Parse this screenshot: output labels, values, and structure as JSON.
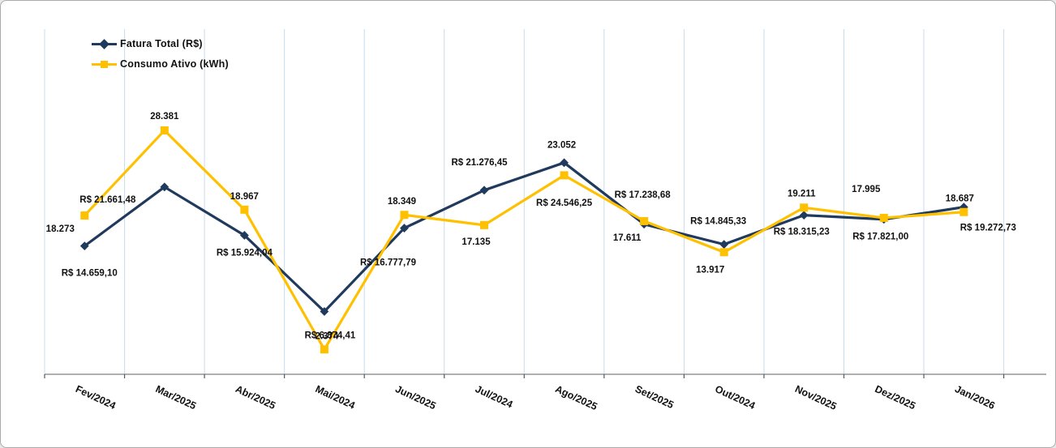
{
  "figure": {
    "background": "#ffffff",
    "border_color": "#ababab"
  },
  "legend": {
    "position": "top-left",
    "items": [
      {
        "label": "Fatura Total (R$)",
        "color": "#1F3A5C",
        "marker": "diamond"
      },
      {
        "label": "Consumo Ativo (kWh)",
        "color": "#FFC000",
        "marker": "square"
      }
    ]
  },
  "chart_data": {
    "type": "line",
    "title": "",
    "xlabel": "",
    "ylabel": "",
    "ylim": [
      0,
      40400
    ],
    "grid": "vertical-only",
    "gridline_color": "#C7DCEE",
    "axis_color": "#7f7f7f",
    "tick_color": "#595959",
    "data_label_color": "#111111",
    "axis_label_color": "#111111",
    "categories": [
      "Fev/2024",
      "Mar/2025",
      "Abr/2025",
      "Mai/2024",
      "Jun/2025",
      "Jul/2024",
      "Ago/2025",
      "Set/2025",
      "Out/2024",
      "Nov/2025",
      "Dez/2025",
      "Jan/2026"
    ],
    "series": [
      {
        "name": "Fatura Total (R$)",
        "color": "#1F3A5C",
        "marker": "diamond",
        "values": [
          14659.1,
          21661.48,
          15924.04,
          6874.41,
          16777.79,
          21276.45,
          24546.25,
          17238.68,
          14845.33,
          18315.23,
          17821.0,
          19272.73
        ],
        "labels": [
          "R$ 14.659,10",
          "R$ 21.661,48",
          "R$ 15.924,04",
          "R$ 6.874,41",
          "R$ 16.777,79",
          "R$ 21.276,45",
          "R$ 24.546,25",
          "R$ 17.238,68",
          "R$ 14.845,33",
          "R$ 18.315,23",
          "R$ 17.821,00",
          "R$ 19.272,73"
        ],
        "label_offsets": [
          [
            6,
            34
          ],
          [
            -70,
            16
          ],
          [
            0,
            22
          ],
          [
            7,
            30
          ],
          [
            -20,
            43
          ],
          [
            -6,
            -34
          ],
          [
            0,
            50
          ],
          [
            -2,
            -36
          ],
          [
            -7,
            -28
          ],
          [
            -3,
            21
          ],
          [
            -4,
            22
          ],
          [
            30,
            26
          ]
        ]
      },
      {
        "name": "Consumo Ativo (kWh)",
        "color": "#FFC000",
        "marker": "square",
        "values": [
          18273,
          28381,
          18967,
          2374,
          18349,
          17135,
          23052,
          17611,
          13917,
          19211,
          17995,
          18687
        ],
        "labels": [
          "18.273",
          "28.381",
          "18.967",
          "2.374",
          "18.349",
          "17.135",
          "23.052",
          "17.611",
          "13.917",
          "19.211",
          "17.995",
          "18.687"
        ],
        "label_offsets": [
          [
            -30,
            17
          ],
          [
            0,
            -17
          ],
          [
            0,
            -16
          ],
          [
            3,
            -16
          ],
          [
            -3,
            -16
          ],
          [
            -10,
            21
          ],
          [
            -3,
            -37
          ],
          [
            -21,
            21
          ],
          [
            -17,
            22
          ],
          [
            -3,
            -17
          ],
          [
            -22,
            -35
          ],
          [
            -5,
            -16
          ]
        ]
      }
    ]
  }
}
